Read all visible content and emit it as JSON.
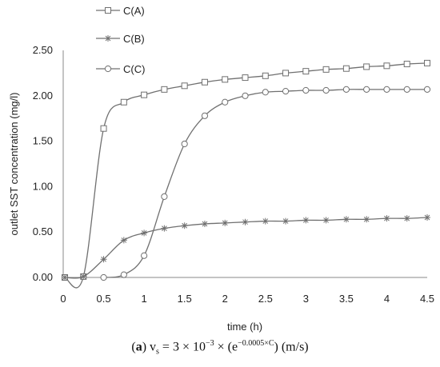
{
  "chart_data": {
    "type": "line",
    "xlabel": "time (h)",
    "ylabel": "outlet  SST concentration (mg/l)",
    "xlim": [
      0,
      4.5
    ],
    "ylim": [
      0,
      2.5
    ],
    "x_ticks": [
      "0",
      "0.5",
      "1",
      "1.5",
      "2",
      "2.5",
      "3",
      "3.5",
      "4",
      "4.5"
    ],
    "y_ticks": [
      "0.00",
      "0.50",
      "1.00",
      "1.50",
      "2.00",
      "2.50"
    ],
    "grid": false,
    "legend_position": "top-left",
    "series": [
      {
        "name": "C(A)",
        "marker": "square",
        "color": "#707070",
        "x": [
          0.02,
          0.25,
          0.5,
          0.75,
          1.0,
          1.25,
          1.5,
          1.75,
          2.0,
          2.25,
          2.5,
          2.75,
          3.0,
          3.25,
          3.5,
          3.75,
          4.0,
          4.25,
          4.5
        ],
        "y": [
          0.0,
          0.01,
          1.64,
          1.93,
          2.01,
          2.07,
          2.11,
          2.15,
          2.18,
          2.2,
          2.22,
          2.25,
          2.27,
          2.29,
          2.3,
          2.32,
          2.33,
          2.35,
          2.36
        ]
      },
      {
        "name": "C(B)",
        "marker": "asterisk",
        "color": "#707070",
        "x": [
          0.02,
          0.25,
          0.5,
          0.75,
          1.0,
          1.25,
          1.5,
          1.75,
          2.0,
          2.25,
          2.5,
          2.75,
          3.0,
          3.25,
          3.5,
          3.75,
          4.0,
          4.25,
          4.5
        ],
        "y": [
          0.0,
          0.01,
          0.2,
          0.41,
          0.49,
          0.54,
          0.57,
          0.59,
          0.6,
          0.61,
          0.62,
          0.62,
          0.63,
          0.63,
          0.64,
          0.64,
          0.65,
          0.65,
          0.66
        ]
      },
      {
        "name": "C(C)",
        "marker": "circle",
        "color": "#707070",
        "x": [
          0.5,
          0.75,
          1.0,
          1.25,
          1.5,
          1.75,
          2.0,
          2.25,
          2.5,
          2.75,
          3.0,
          3.25,
          3.5,
          3.75,
          4.0,
          4.25,
          4.5
        ],
        "y": [
          0.0,
          0.03,
          0.24,
          0.89,
          1.47,
          1.78,
          1.93,
          2.0,
          2.04,
          2.05,
          2.06,
          2.06,
          2.07,
          2.07,
          2.07,
          2.07,
          2.07
        ]
      }
    ]
  },
  "caption": {
    "label": "a",
    "var": "v",
    "var_sub": "s",
    "eq1": " = 3 × 10",
    "exp1": "−3",
    "eq2": " × (e",
    "exp2": "−0.0005×C",
    "eq3": ")  (m/s)"
  }
}
